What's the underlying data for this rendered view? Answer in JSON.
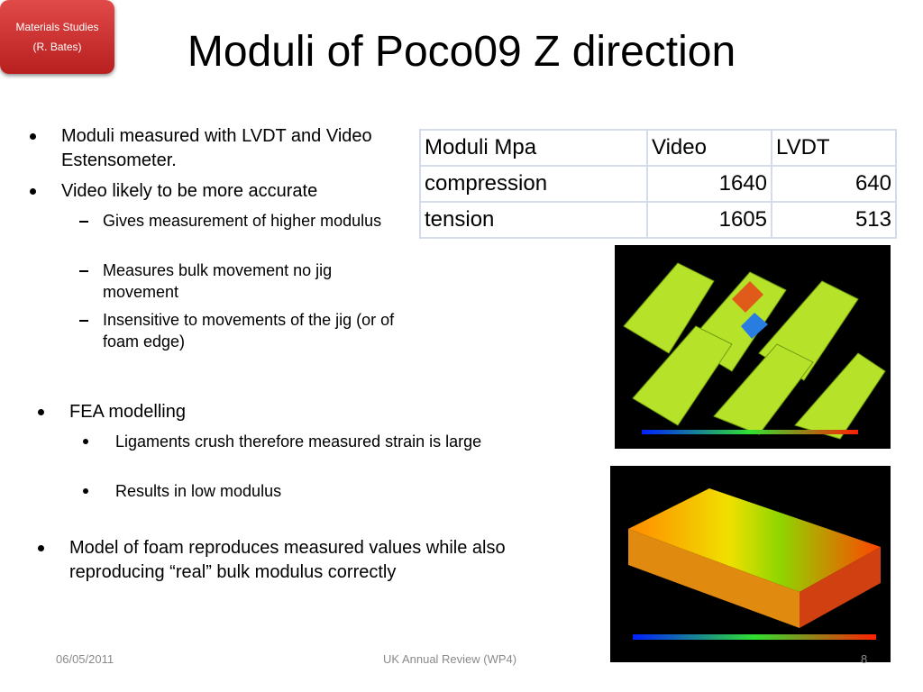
{
  "header": {
    "title": "Moduli of Poco09 Z direction",
    "badge": [
      "Materials Studies",
      "(R. Bates)"
    ]
  },
  "bullets": [
    {
      "text": "Moduli measured with LVDT and Video Estensometer.",
      "sub": []
    },
    {
      "text": "Video likely to be more accurate",
      "sub": [
        "Gives measurement of higher modulus",
        "Measures bulk movement no jig movement",
        "Insensitive to movements of the jig  (or of foam edge)"
      ]
    }
  ],
  "fea": [
    {
      "text": "FEA modelling",
      "sub": [
        "Ligaments crush therefore measured strain is large",
        "Results in low modulus"
      ]
    },
    {
      "text": "Model of foam reproduces measured values while also reproducing “real” bulk modulus correctly",
      "sub": []
    }
  ],
  "table": {
    "header": [
      "Moduli Mpa",
      "Video",
      "LVDT"
    ],
    "rows": [
      [
        "compression",
        1640,
        640
      ],
      [
        "tension",
        1605,
        513
      ]
    ]
  },
  "footer": {
    "date": "06/05/2011",
    "center": "UK Annual Review (WP4)",
    "page": "8"
  }
}
